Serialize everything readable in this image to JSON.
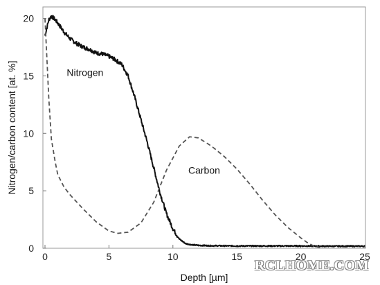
{
  "chart_data": {
    "type": "line",
    "xlabel": "Depth [µm]",
    "ylabel": "Nitrogen/carbon content [at. %]",
    "xlim": [
      0,
      25
    ],
    "ylim": [
      0,
      21
    ],
    "x_ticks": [
      "0",
      "5",
      "10",
      "15",
      "20",
      "25"
    ],
    "y_ticks": [
      "0",
      "5",
      "10",
      "15",
      "20"
    ],
    "grid": false,
    "legend": "none",
    "annotations": [
      {
        "text": "Nitrogen",
        "x": 1.7,
        "y": 15.0
      },
      {
        "text": "Carbon",
        "x": 11.2,
        "y": 6.5
      }
    ],
    "series": [
      {
        "label_text": "Nitrogen",
        "style": "solid",
        "color": "#111111",
        "x": [
          0.0,
          0.3,
          0.5,
          0.8,
          1.0,
          1.5,
          2.0,
          2.5,
          3.0,
          3.5,
          4.0,
          4.5,
          5.0,
          5.5,
          6.0,
          6.5,
          7.0,
          7.5,
          8.0,
          8.5,
          9.0,
          9.5,
          10.0,
          10.5,
          11.0,
          11.5,
          12.0,
          13.0,
          15.0,
          18.0,
          20.0,
          22.0,
          25.0
        ],
        "y": [
          18.5,
          19.9,
          20.2,
          19.9,
          19.6,
          18.8,
          18.2,
          17.8,
          17.5,
          17.3,
          17.0,
          16.9,
          16.7,
          16.4,
          16.0,
          15.0,
          13.2,
          11.2,
          9.2,
          7.0,
          4.8,
          3.0,
          1.7,
          0.8,
          0.4,
          0.3,
          0.25,
          0.22,
          0.2,
          0.2,
          0.2,
          0.18,
          0.18
        ]
      },
      {
        "label_text": "Carbon",
        "style": "dashed",
        "color": "#555555",
        "x": [
          0.0,
          0.15,
          0.3,
          0.5,
          0.8,
          1.0,
          1.5,
          2.0,
          3.0,
          4.0,
          5.0,
          5.7,
          6.5,
          7.5,
          8.5,
          9.5,
          10.5,
          11.3,
          12.0,
          13.0,
          14.0,
          15.0,
          16.0,
          17.0,
          18.0,
          19.0,
          20.0,
          20.5,
          21.0,
          21.5
        ],
        "y": [
          20.0,
          16.5,
          13.0,
          9.5,
          7.5,
          6.4,
          5.3,
          4.6,
          3.4,
          2.3,
          1.5,
          1.3,
          1.4,
          2.2,
          4.0,
          6.8,
          8.9,
          9.7,
          9.6,
          8.9,
          8.0,
          6.9,
          5.6,
          4.2,
          2.9,
          1.8,
          0.9,
          0.5,
          0.2,
          0.05
        ]
      }
    ]
  },
  "watermark": {
    "text": "RCLHOME.COM"
  }
}
